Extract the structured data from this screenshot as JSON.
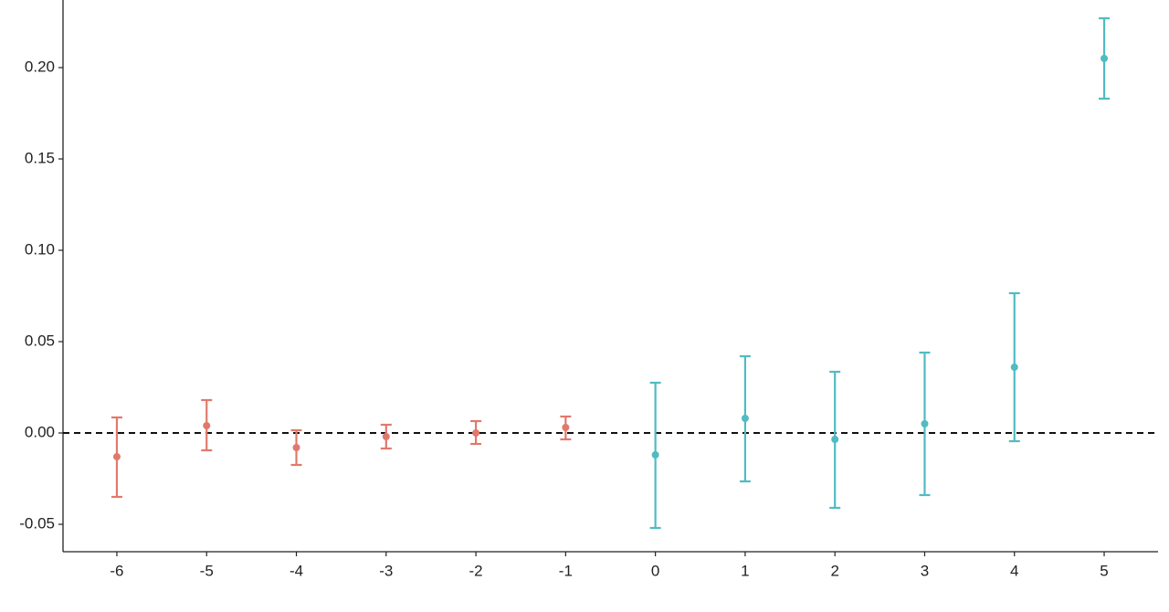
{
  "chart_data": {
    "type": "errorbar",
    "xlim": [
      -6.6,
      5.6
    ],
    "xticks": [
      -6,
      -5,
      -4,
      -3,
      -2,
      -1,
      0,
      1,
      2,
      3,
      4,
      5
    ],
    "ylim": [
      -0.065,
      0.237
    ],
    "yticks": [
      -0.05,
      {
        "value": 0,
        "label": "0.00"
      },
      0.05,
      {
        "value": 0.1,
        "label": "0.10"
      },
      {
        "value": 0.15,
        "label": "0.15"
      },
      {
        "value": 0.2,
        "label": "0.20"
      }
    ],
    "reference_line": 0,
    "grid": false,
    "series": [
      {
        "color": "#e0796c",
        "x": [
          -6,
          -5,
          -4,
          -3,
          -2,
          -1
        ],
        "values": [
          -0.013,
          0.004,
          -0.008,
          -0.002,
          0.0,
          0.003
        ],
        "lower": [
          -0.035,
          -0.0095,
          -0.0175,
          -0.0085,
          -0.006,
          -0.0035
        ],
        "upper": [
          0.0085,
          0.018,
          0.0015,
          0.0045,
          0.0065,
          0.009
        ]
      },
      {
        "color": "#4fbcc2",
        "x": [
          0,
          1,
          2,
          3,
          4,
          5
        ],
        "values": [
          -0.012,
          0.008,
          -0.0035,
          0.005,
          0.036,
          0.205
        ],
        "lower": [
          -0.052,
          -0.0265,
          -0.041,
          -0.034,
          -0.0045,
          0.183
        ],
        "upper": [
          0.0275,
          0.042,
          0.0335,
          0.044,
          0.0765,
          0.227
        ]
      }
    ]
  }
}
